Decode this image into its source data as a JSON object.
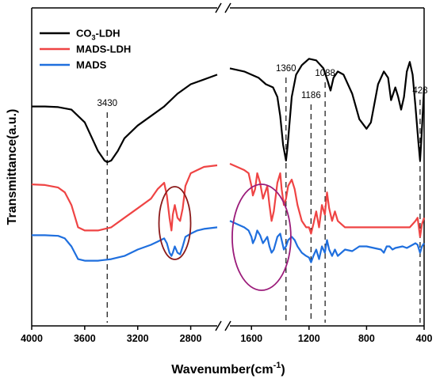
{
  "chart_data": {
    "type": "line",
    "title": "",
    "xlabel": "Wavenumber(cm",
    "xlabel_sup": "-1",
    "xlabel_tail": ")",
    "ylabel": "Transmittance(a.u.)",
    "axis_break": true,
    "xlim_left": [
      4000,
      2600
    ],
    "xlim_right": [
      1750,
      400
    ],
    "x_ticks_left": [
      "4000",
      "3600",
      "3200",
      "2800"
    ],
    "x_ticks_right": [
      "1600",
      "1200",
      "800",
      "400"
    ],
    "grid": false,
    "legend_position": "top-left",
    "legend": [
      {
        "label_main": "CO",
        "label_sub": "3",
        "label_tail": "-LDH",
        "color": "#000000"
      },
      {
        "label_main": "MADS-LDH",
        "label_sub": "",
        "label_tail": "",
        "color": "#ef4444"
      },
      {
        "label_main": "MADS",
        "label_sub": "",
        "label_tail": "",
        "color": "#1f6fde"
      }
    ],
    "annotations": [
      {
        "label": "3430",
        "x": 3430
      },
      {
        "label": "1360",
        "x": 1360
      },
      {
        "label": "1186",
        "x": 1186
      },
      {
        "label": "1088",
        "x": 1088
      },
      {
        "label": "428",
        "x": 428
      }
    ],
    "highlight_regions": [
      {
        "center_x": 2920,
        "color": "#8b1a1a"
      },
      {
        "center_x": 1530,
        "color": "#9b1b7a"
      }
    ],
    "series": [
      {
        "name": "CO3-LDH",
        "color": "#000000",
        "points": [
          [
            4000,
            0.69
          ],
          [
            3900,
            0.69
          ],
          [
            3800,
            0.688
          ],
          [
            3700,
            0.68
          ],
          [
            3600,
            0.64
          ],
          [
            3500,
            0.55
          ],
          [
            3450,
            0.52
          ],
          [
            3430,
            0.515
          ],
          [
            3400,
            0.52
          ],
          [
            3350,
            0.55
          ],
          [
            3300,
            0.59
          ],
          [
            3200,
            0.63
          ],
          [
            3100,
            0.66
          ],
          [
            3000,
            0.69
          ],
          [
            2900,
            0.73
          ],
          [
            2800,
            0.76
          ],
          [
            2600,
            0.79
          ],
          [
            1750,
            0.81
          ],
          [
            1700,
            0.805
          ],
          [
            1650,
            0.8
          ],
          [
            1600,
            0.79
          ],
          [
            1550,
            0.78
          ],
          [
            1500,
            0.76
          ],
          [
            1450,
            0.75
          ],
          [
            1420,
            0.72
          ],
          [
            1400,
            0.66
          ],
          [
            1380,
            0.57
          ],
          [
            1360,
            0.52
          ],
          [
            1350,
            0.56
          ],
          [
            1320,
            0.72
          ],
          [
            1290,
            0.79
          ],
          [
            1250,
            0.82
          ],
          [
            1200,
            0.84
          ],
          [
            1150,
            0.835
          ],
          [
            1100,
            0.81
          ],
          [
            1070,
            0.77
          ],
          [
            1050,
            0.74
          ],
          [
            1030,
            0.78
          ],
          [
            1000,
            0.8
          ],
          [
            960,
            0.79
          ],
          [
            900,
            0.73
          ],
          [
            850,
            0.65
          ],
          [
            800,
            0.62
          ],
          [
            770,
            0.64
          ],
          [
            720,
            0.76
          ],
          [
            680,
            0.8
          ],
          [
            650,
            0.78
          ],
          [
            630,
            0.71
          ],
          [
            600,
            0.75
          ],
          [
            580,
            0.72
          ],
          [
            560,
            0.68
          ],
          [
            540,
            0.72
          ],
          [
            520,
            0.8
          ],
          [
            500,
            0.83
          ],
          [
            480,
            0.79
          ],
          [
            460,
            0.69
          ],
          [
            440,
            0.58
          ],
          [
            428,
            0.52
          ],
          [
            420,
            0.58
          ],
          [
            400,
            0.75
          ]
        ]
      },
      {
        "name": "MADS-LDH",
        "color": "#ef4444",
        "points": [
          [
            4000,
            0.445
          ],
          [
            3900,
            0.443
          ],
          [
            3800,
            0.435
          ],
          [
            3750,
            0.42
          ],
          [
            3700,
            0.38
          ],
          [
            3650,
            0.31
          ],
          [
            3600,
            0.3
          ],
          [
            3500,
            0.3
          ],
          [
            3400,
            0.31
          ],
          [
            3300,
            0.34
          ],
          [
            3200,
            0.37
          ],
          [
            3100,
            0.4
          ],
          [
            3050,
            0.43
          ],
          [
            3000,
            0.45
          ],
          [
            2980,
            0.41
          ],
          [
            2960,
            0.34
          ],
          [
            2945,
            0.3
          ],
          [
            2935,
            0.35
          ],
          [
            2920,
            0.38
          ],
          [
            2900,
            0.34
          ],
          [
            2880,
            0.33
          ],
          [
            2860,
            0.37
          ],
          [
            2840,
            0.44
          ],
          [
            2800,
            0.48
          ],
          [
            2750,
            0.49
          ],
          [
            2700,
            0.5
          ],
          [
            2600,
            0.505
          ],
          [
            1750,
            0.51
          ],
          [
            1700,
            0.5
          ],
          [
            1650,
            0.49
          ],
          [
            1620,
            0.48
          ],
          [
            1600,
            0.44
          ],
          [
            1590,
            0.41
          ],
          [
            1575,
            0.43
          ],
          [
            1560,
            0.48
          ],
          [
            1540,
            0.45
          ],
          [
            1520,
            0.4
          ],
          [
            1505,
            0.42
          ],
          [
            1490,
            0.44
          ],
          [
            1475,
            0.38
          ],
          [
            1460,
            0.33
          ],
          [
            1445,
            0.36
          ],
          [
            1420,
            0.45
          ],
          [
            1400,
            0.48
          ],
          [
            1390,
            0.43
          ],
          [
            1375,
            0.38
          ],
          [
            1360,
            0.4
          ],
          [
            1345,
            0.44
          ],
          [
            1320,
            0.46
          ],
          [
            1300,
            0.43
          ],
          [
            1280,
            0.38
          ],
          [
            1250,
            0.33
          ],
          [
            1220,
            0.31
          ],
          [
            1200,
            0.31
          ],
          [
            1186,
            0.29
          ],
          [
            1170,
            0.32
          ],
          [
            1150,
            0.36
          ],
          [
            1130,
            0.31
          ],
          [
            1110,
            0.38
          ],
          [
            1090,
            0.35
          ],
          [
            1075,
            0.42
          ],
          [
            1060,
            0.37
          ],
          [
            1040,
            0.33
          ],
          [
            1020,
            0.36
          ],
          [
            1000,
            0.33
          ],
          [
            950,
            0.31
          ],
          [
            900,
            0.31
          ],
          [
            850,
            0.31
          ],
          [
            800,
            0.31
          ],
          [
            750,
            0.31
          ],
          [
            700,
            0.31
          ],
          [
            650,
            0.31
          ],
          [
            600,
            0.31
          ],
          [
            550,
            0.31
          ],
          [
            520,
            0.31
          ],
          [
            500,
            0.31
          ],
          [
            480,
            0.32
          ],
          [
            460,
            0.33
          ],
          [
            445,
            0.34
          ],
          [
            428,
            0.28
          ],
          [
            415,
            0.32
          ],
          [
            400,
            0.34
          ]
        ]
      },
      {
        "name": "MADS",
        "color": "#1f6fde",
        "points": [
          [
            4000,
            0.285
          ],
          [
            3900,
            0.285
          ],
          [
            3800,
            0.283
          ],
          [
            3750,
            0.275
          ],
          [
            3700,
            0.25
          ],
          [
            3650,
            0.21
          ],
          [
            3600,
            0.205
          ],
          [
            3500,
            0.205
          ],
          [
            3400,
            0.21
          ],
          [
            3300,
            0.22
          ],
          [
            3200,
            0.24
          ],
          [
            3100,
            0.255
          ],
          [
            3050,
            0.265
          ],
          [
            3000,
            0.275
          ],
          [
            2980,
            0.26
          ],
          [
            2960,
            0.23
          ],
          [
            2945,
            0.22
          ],
          [
            2935,
            0.23
          ],
          [
            2920,
            0.25
          ],
          [
            2900,
            0.23
          ],
          [
            2880,
            0.225
          ],
          [
            2860,
            0.25
          ],
          [
            2840,
            0.28
          ],
          [
            2800,
            0.29
          ],
          [
            2750,
            0.3
          ],
          [
            2700,
            0.305
          ],
          [
            2600,
            0.31
          ],
          [
            1750,
            0.33
          ],
          [
            1700,
            0.32
          ],
          [
            1650,
            0.31
          ],
          [
            1620,
            0.3
          ],
          [
            1600,
            0.28
          ],
          [
            1590,
            0.26
          ],
          [
            1575,
            0.275
          ],
          [
            1560,
            0.3
          ],
          [
            1540,
            0.285
          ],
          [
            1520,
            0.26
          ],
          [
            1505,
            0.27
          ],
          [
            1490,
            0.28
          ],
          [
            1475,
            0.25
          ],
          [
            1460,
            0.23
          ],
          [
            1445,
            0.24
          ],
          [
            1420,
            0.28
          ],
          [
            1400,
            0.29
          ],
          [
            1390,
            0.27
          ],
          [
            1375,
            0.24
          ],
          [
            1360,
            0.25
          ],
          [
            1345,
            0.27
          ],
          [
            1320,
            0.28
          ],
          [
            1300,
            0.27
          ],
          [
            1280,
            0.25
          ],
          [
            1250,
            0.23
          ],
          [
            1220,
            0.22
          ],
          [
            1200,
            0.215
          ],
          [
            1186,
            0.2
          ],
          [
            1170,
            0.22
          ],
          [
            1150,
            0.24
          ],
          [
            1130,
            0.21
          ],
          [
            1110,
            0.25
          ],
          [
            1090,
            0.23
          ],
          [
            1075,
            0.27
          ],
          [
            1060,
            0.24
          ],
          [
            1040,
            0.22
          ],
          [
            1020,
            0.24
          ],
          [
            1000,
            0.22
          ],
          [
            950,
            0.24
          ],
          [
            900,
            0.235
          ],
          [
            850,
            0.25
          ],
          [
            800,
            0.25
          ],
          [
            750,
            0.245
          ],
          [
            700,
            0.24
          ],
          [
            680,
            0.23
          ],
          [
            660,
            0.25
          ],
          [
            640,
            0.25
          ],
          [
            620,
            0.24
          ],
          [
            600,
            0.245
          ],
          [
            550,
            0.25
          ],
          [
            520,
            0.245
          ],
          [
            500,
            0.25
          ],
          [
            480,
            0.255
          ],
          [
            460,
            0.26
          ],
          [
            445,
            0.255
          ],
          [
            428,
            0.23
          ],
          [
            415,
            0.25
          ],
          [
            400,
            0.26
          ]
        ]
      }
    ]
  }
}
